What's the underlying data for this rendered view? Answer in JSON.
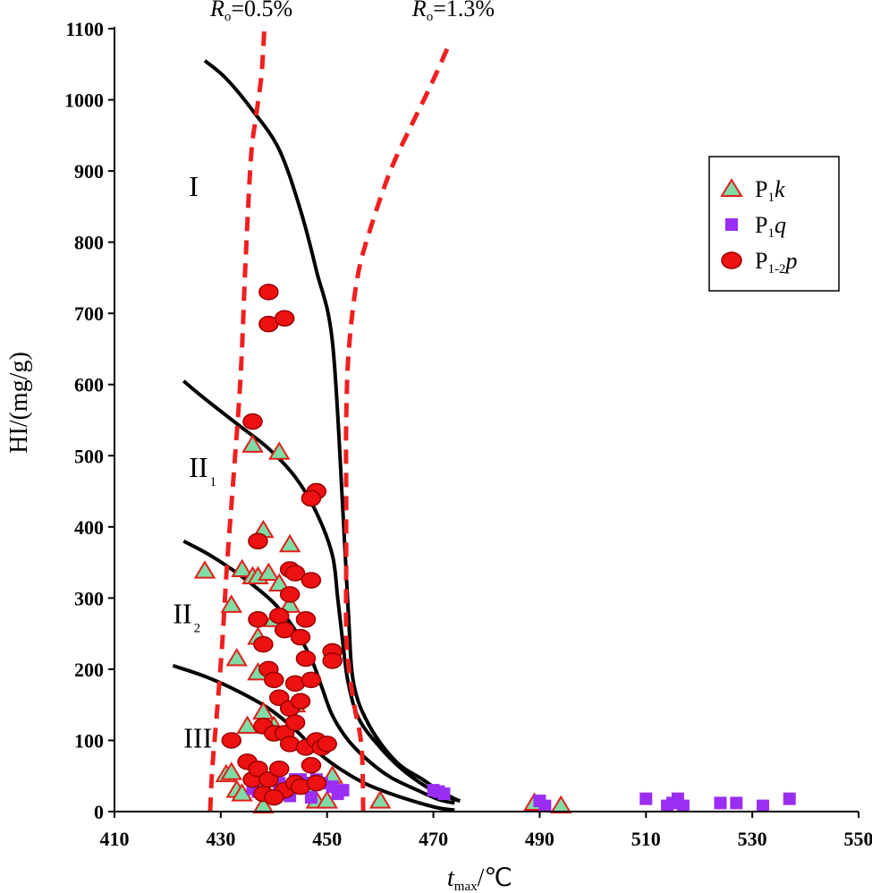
{
  "chart_data": {
    "type": "scatter",
    "title": "",
    "xlabel": {
      "main": "t",
      "sub": "max",
      "unit": "/℃"
    },
    "ylabel": "HI/(mg/g)",
    "xlim": [
      410,
      550
    ],
    "ylim": [
      0,
      1100
    ],
    "xticks": [
      "410",
      "430",
      "450",
      "470",
      "490",
      "510",
      "530",
      "550"
    ],
    "yticks": [
      "0",
      "100",
      "200",
      "300",
      "400",
      "500",
      "600",
      "700",
      "800",
      "900",
      "1000",
      "1100"
    ],
    "grid": false,
    "legend_position": "top-right",
    "region_labels": [
      {
        "text": "I",
        "sub": "",
        "x": 424,
        "y": 880
      },
      {
        "text": "II",
        "sub": "1",
        "x": 424,
        "y": 485
      },
      {
        "text": "II",
        "sub": "2",
        "x": 421,
        "y": 280
      },
      {
        "text": "III",
        "sub": "",
        "x": 423,
        "y": 105
      }
    ],
    "boundary_curves": [
      {
        "name": "I",
        "points": [
          [
            427,
            1055
          ],
          [
            431,
            1030
          ],
          [
            436,
            985
          ],
          [
            441,
            930
          ],
          [
            445,
            845
          ],
          [
            448,
            760
          ],
          [
            451,
            660
          ],
          [
            453,
            420
          ],
          [
            454,
            280
          ],
          [
            455,
            180
          ],
          [
            458,
            120
          ],
          [
            463,
            70
          ],
          [
            468,
            45
          ],
          [
            471,
            30
          ],
          [
            474,
            18
          ],
          [
            475,
            15
          ]
        ]
      },
      {
        "name": "II1",
        "points": [
          [
            423,
            605
          ],
          [
            427,
            580
          ],
          [
            433,
            545
          ],
          [
            439,
            510
          ],
          [
            444,
            470
          ],
          [
            448,
            420
          ],
          [
            451,
            360
          ],
          [
            452,
            300
          ],
          [
            453,
            235
          ],
          [
            454,
            180
          ],
          [
            456,
            130
          ],
          [
            460,
            90
          ],
          [
            464,
            60
          ],
          [
            468,
            38
          ],
          [
            472,
            22
          ],
          [
            475,
            15
          ]
        ]
      },
      {
        "name": "II2",
        "points": [
          [
            423,
            380
          ],
          [
            428,
            360
          ],
          [
            434,
            330
          ],
          [
            440,
            293
          ],
          [
            444,
            255
          ],
          [
            447,
            215
          ],
          [
            449,
            175
          ],
          [
            451,
            135
          ],
          [
            454,
            100
          ],
          [
            458,
            70
          ],
          [
            462,
            48
          ],
          [
            467,
            30
          ],
          [
            471,
            17
          ],
          [
            474,
            12
          ]
        ]
      },
      {
        "name": "III",
        "points": [
          [
            421,
            205
          ],
          [
            427,
            190
          ],
          [
            433,
            170
          ],
          [
            439,
            145
          ],
          [
            444,
            115
          ],
          [
            448,
            85
          ],
          [
            452,
            62
          ],
          [
            457,
            40
          ],
          [
            462,
            25
          ],
          [
            467,
            13
          ],
          [
            471,
            5
          ],
          [
            474,
            2
          ]
        ]
      }
    ],
    "ro_curves": [
      {
        "label": "R",
        "sub": "o",
        "value": "=0.5%",
        "label_x": 428,
        "label_y": 1125,
        "points": [
          [
            428,
            0
          ],
          [
            428.4,
            60
          ],
          [
            429.4,
            150
          ],
          [
            430.4,
            250
          ],
          [
            431.2,
            350
          ],
          [
            432.5,
            480
          ],
          [
            433.8,
            620
          ],
          [
            434.7,
            780
          ],
          [
            435.7,
            920
          ],
          [
            436.6,
            975
          ],
          [
            437.6,
            1030
          ],
          [
            437.9,
            1060
          ],
          [
            438.2,
            1100
          ]
        ]
      },
      {
        "label": "R",
        "sub": "o",
        "value": "=1.3%",
        "label_x": 466,
        "label_y": 1125,
        "points": [
          [
            456.8,
            0
          ],
          [
            456.5,
            90
          ],
          [
            455.1,
            150
          ],
          [
            454.1,
            200
          ],
          [
            453.6,
            250
          ],
          [
            453.6,
            350
          ],
          [
            453.6,
            450
          ],
          [
            453.6,
            550
          ],
          [
            454.1,
            650
          ],
          [
            455.7,
            750
          ],
          [
            458.2,
            820
          ],
          [
            461.9,
            900
          ],
          [
            465.6,
            960
          ],
          [
            469.5,
            1020
          ],
          [
            473.1,
            1080
          ]
        ]
      }
    ],
    "series": [
      {
        "name": "P1k",
        "legend": {
          "main": "P",
          "sub": "1",
          "italic": "k"
        },
        "marker": "triangle",
        "color": "#7fdca4",
        "edge": "#e0201c",
        "points": [
          [
            427,
            338
          ],
          [
            431,
            52
          ],
          [
            432,
            55
          ],
          [
            432,
            290
          ],
          [
            433,
            215
          ],
          [
            433,
            30
          ],
          [
            434,
            25
          ],
          [
            434,
            340
          ],
          [
            435,
            120
          ],
          [
            436,
            515
          ],
          [
            436,
            330
          ],
          [
            437,
            330
          ],
          [
            437,
            245
          ],
          [
            437,
            195
          ],
          [
            438,
            395
          ],
          [
            438,
            140
          ],
          [
            438,
            8
          ],
          [
            439,
            335
          ],
          [
            440,
            270
          ],
          [
            440,
            120
          ],
          [
            441,
            505
          ],
          [
            441,
            320
          ],
          [
            443,
            375
          ],
          [
            443,
            290
          ],
          [
            444,
            150
          ],
          [
            446,
            35
          ],
          [
            448,
            15
          ],
          [
            450,
            15
          ],
          [
            451,
            50
          ],
          [
            460,
            15
          ],
          [
            489,
            12
          ],
          [
            494,
            8
          ]
        ]
      },
      {
        "name": "P1q",
        "legend": {
          "main": "P",
          "sub": "1",
          "italic": "q"
        },
        "marker": "square",
        "color": "#9a2ef2",
        "edge": "#9a2ef2",
        "points": [
          [
            436,
            32
          ],
          [
            437,
            28
          ],
          [
            441,
            40
          ],
          [
            442,
            25
          ],
          [
            443,
            22
          ],
          [
            444,
            45
          ],
          [
            445,
            45
          ],
          [
            446,
            40
          ],
          [
            447,
            20
          ],
          [
            448,
            45
          ],
          [
            449,
            40
          ],
          [
            451,
            35
          ],
          [
            452,
            25
          ],
          [
            453,
            30
          ],
          [
            470,
            30
          ],
          [
            471,
            28
          ],
          [
            472,
            25
          ],
          [
            490,
            15
          ],
          [
            491,
            8
          ],
          [
            510,
            18
          ],
          [
            514,
            8
          ],
          [
            515,
            12
          ],
          [
            516,
            18
          ],
          [
            517,
            8
          ],
          [
            524,
            12
          ],
          [
            527,
            12
          ],
          [
            532,
            8
          ],
          [
            537,
            18
          ]
        ]
      },
      {
        "name": "P1-2p",
        "legend": {
          "main": "P",
          "sub": "1-2",
          "italic": "p"
        },
        "marker": "circle",
        "color": "#ee1111",
        "edge": "#9a0000",
        "points": [
          [
            439,
            730
          ],
          [
            439,
            685
          ],
          [
            442,
            693
          ],
          [
            436,
            548
          ],
          [
            448,
            450
          ],
          [
            447,
            440
          ],
          [
            437,
            380
          ],
          [
            443,
            340
          ],
          [
            444,
            335
          ],
          [
            447,
            325
          ],
          [
            437,
            270
          ],
          [
            441,
            275
          ],
          [
            443,
            305
          ],
          [
            442,
            255
          ],
          [
            445,
            245
          ],
          [
            446,
            270
          ],
          [
            438,
            235
          ],
          [
            446,
            215
          ],
          [
            451,
            225
          ],
          [
            451,
            212
          ],
          [
            439,
            200
          ],
          [
            440,
            185
          ],
          [
            441,
            160
          ],
          [
            443,
            145
          ],
          [
            444,
            180
          ],
          [
            445,
            155
          ],
          [
            447,
            185
          ],
          [
            432,
            100
          ],
          [
            438,
            120
          ],
          [
            440,
            110
          ],
          [
            442,
            110
          ],
          [
            443,
            95
          ],
          [
            444,
            125
          ],
          [
            446,
            90
          ],
          [
            447,
            65
          ],
          [
            448,
            100
          ],
          [
            449,
            90
          ],
          [
            450,
            95
          ],
          [
            435,
            70
          ],
          [
            436,
            45
          ],
          [
            437,
            60
          ],
          [
            438,
            25
          ],
          [
            439,
            45
          ],
          [
            441,
            60
          ],
          [
            442,
            30
          ],
          [
            444,
            40
          ],
          [
            445,
            35
          ],
          [
            448,
            40
          ],
          [
            440,
            20
          ]
        ]
      }
    ]
  }
}
